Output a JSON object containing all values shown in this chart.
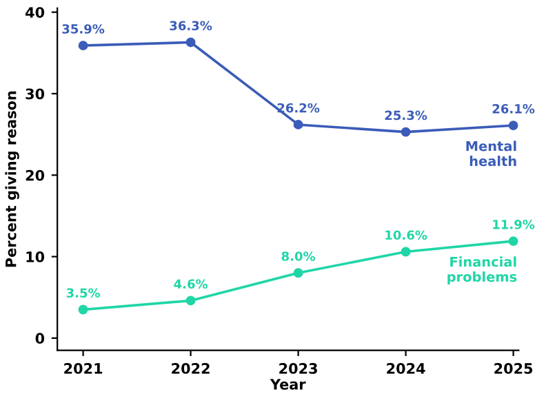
{
  "chart_data": {
    "type": "line",
    "xlabel": "Year",
    "ylabel": "Percent giving reason",
    "x": [
      2021,
      2022,
      2023,
      2024,
      2025
    ],
    "xlim": [
      2020.76,
      2025.05
    ],
    "xticks": [
      2021,
      2022,
      2023,
      2024,
      2025
    ],
    "ylim": [
      -1.5,
      40.5
    ],
    "yticks": [
      0,
      10,
      20,
      30,
      40
    ],
    "grid": false,
    "legend": false,
    "marker": "circle",
    "line_style": "solid",
    "series": [
      {
        "name": "Mental\nhealth",
        "color": "#3b5cb8",
        "values": [
          35.9,
          36.3,
          26.2,
          25.3,
          26.1
        ],
        "value_labels": [
          "35.9%",
          "36.3%",
          "26.2%",
          "25.3%",
          "26.1%"
        ]
      },
      {
        "name": "Financial\nproblems",
        "color": "#1fd6a6",
        "values": [
          3.5,
          4.6,
          8.0,
          10.6,
          11.9
        ],
        "value_labels": [
          "3.5%",
          "4.6%",
          "8.0%",
          "10.6%",
          "11.9%"
        ]
      }
    ]
  }
}
